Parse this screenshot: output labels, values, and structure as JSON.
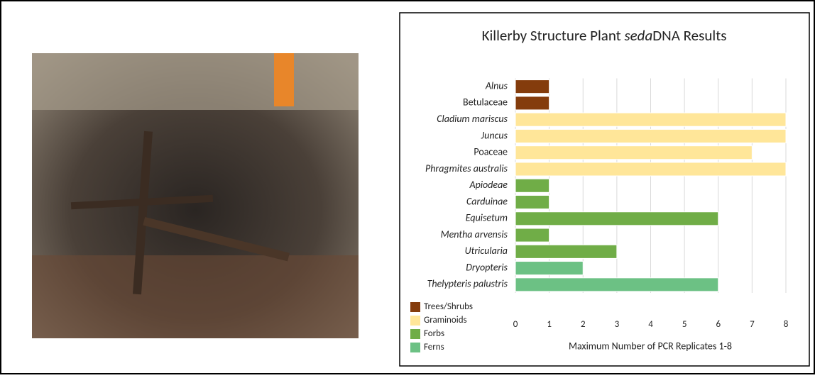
{
  "chart_data": {
    "type": "bar",
    "orientation": "horizontal",
    "title_parts": [
      "Killerby Structure Plant ",
      "seda",
      "DNA Results"
    ],
    "categories": [
      "Alnus",
      "Betulaceae",
      "Cladium mariscus",
      "Juncus",
      "Poaceae",
      "Phragmites australis",
      "Apiodeae",
      "Carduinae",
      "Equisetum",
      "Mentha arvensis",
      "Utricularia",
      "Dryopteris",
      "Thelypteris palustris"
    ],
    "italic": [
      true,
      false,
      true,
      true,
      false,
      true,
      true,
      true,
      true,
      true,
      true,
      true,
      true
    ],
    "series": [
      {
        "name": "Trees/Shrubs",
        "color": "#843c0c",
        "values": [
          1,
          1,
          null,
          null,
          null,
          null,
          null,
          null,
          null,
          null,
          null,
          null,
          null
        ]
      },
      {
        "name": "Graminoids",
        "color": "#ffe699",
        "values": [
          null,
          null,
          8,
          8,
          7,
          8,
          null,
          null,
          null,
          null,
          null,
          null,
          null
        ]
      },
      {
        "name": "Forbs",
        "color": "#70ad47",
        "values": [
          null,
          null,
          null,
          null,
          null,
          null,
          1,
          1,
          6,
          1,
          3,
          null,
          null
        ]
      },
      {
        "name": "Ferns",
        "color": "#6cc184",
        "values": [
          null,
          null,
          null,
          null,
          null,
          null,
          null,
          null,
          null,
          null,
          null,
          2,
          6
        ]
      }
    ],
    "xlim": [
      0,
      8
    ],
    "xticks": [
      0,
      1,
      2,
      3,
      4,
      5,
      6,
      7,
      8
    ],
    "x_label": "Maximum Number of PCR Replicates 1-8",
    "grid": true,
    "legend": "bottom-left"
  }
}
